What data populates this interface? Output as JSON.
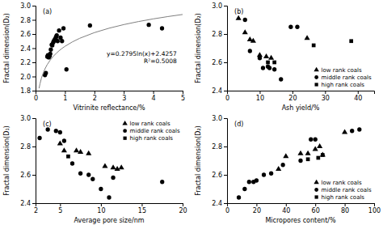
{
  "chart_data": [
    {
      "type": "scatter",
      "title": "(a)",
      "xlabel": "Vitrinite reflectance/%",
      "ylabel": "Fractal dimension(D₂)",
      "xlim": [
        0,
        5
      ],
      "ylim": [
        1.8,
        3.0
      ],
      "xticks": [
        0,
        1,
        2,
        3,
        4,
        5
      ],
      "yticks": [
        1.8,
        {
          "value": 2.0,
          "label": "2.0"
        },
        2.2,
        2.4,
        2.6,
        2.8,
        {
          "value": 3.0,
          "label": "3.0"
        }
      ],
      "annotations": [
        "y=0.2795ln(x)+2.4257",
        "R²=0.5008"
      ],
      "series": [
        {
          "type": "scatter",
          "marker": "circle",
          "color": "black",
          "x": [
            0.32,
            0.35,
            0.4,
            0.42,
            0.45,
            0.48,
            0.5,
            0.52,
            0.55,
            0.57,
            0.6,
            0.62,
            0.65,
            0.68,
            0.7,
            0.72,
            0.75,
            0.8,
            0.85,
            0.9,
            0.95,
            1.05,
            1.85,
            3.85,
            4.3
          ],
          "values": [
            2.02,
            2.05,
            2.28,
            2.3,
            2.27,
            2.29,
            2.32,
            2.38,
            2.45,
            2.44,
            2.48,
            2.5,
            2.52,
            2.54,
            2.56,
            2.58,
            2.5,
            2.65,
            2.55,
            2.5,
            2.68,
            2.1,
            2.72,
            2.73,
            2.68
          ]
        },
        {
          "type": "line",
          "color": "gray",
          "x": [
            0.12,
            0.15,
            0.2,
            0.25,
            0.3,
            0.35,
            0.4,
            0.5,
            0.6,
            0.7,
            0.8,
            0.9,
            1,
            1.25,
            1.5,
            2,
            2.5,
            3,
            3.5,
            4,
            4.5,
            5
          ],
          "values": [
            1.8331,
            1.8955,
            1.9759,
            2.0382,
            2.0892,
            2.1323,
            2.1696,
            2.232,
            2.2829,
            2.326,
            2.3633,
            2.3963,
            2.4257,
            2.4881,
            2.539,
            2.6194,
            2.6818,
            2.7328,
            2.7758,
            2.8132,
            2.8461,
            2.8755
          ]
        }
      ]
    },
    {
      "type": "scatter",
      "title": "(b)",
      "xlabel": "Ash yield/%",
      "ylabel": "Fractal dimension(D₂)",
      "xlim": [
        0,
        45
      ],
      "ylim": [
        2.4,
        3.0
      ],
      "xticks": [
        0,
        10,
        20,
        30,
        40
      ],
      "yticks": [
        2.4,
        2.6,
        2.8,
        {
          "value": 3.0,
          "label": "3.0"
        }
      ],
      "legend": "lower right",
      "series": [
        {
          "name": "low rank coals",
          "marker": "triangle",
          "color": "black",
          "x": [
            3.5,
            5.5,
            7.0,
            8.0,
            10.0,
            12.0,
            13.5,
            24.5
          ],
          "values": [
            2.91,
            2.81,
            2.76,
            2.75,
            2.65,
            2.64,
            2.63,
            2.77
          ]
        },
        {
          "name": "middle rank coals",
          "marker": "circle",
          "color": "black",
          "x": [
            5.5,
            7.0,
            10.0,
            11.0,
            12.5,
            13.0,
            14.5,
            16.5,
            19.5,
            21.5
          ],
          "values": [
            2.9,
            2.68,
            2.63,
            2.56,
            2.57,
            2.56,
            2.55,
            2.48,
            2.85,
            2.85
          ]
        },
        {
          "name": "high rank coals",
          "marker": "square",
          "color": "black",
          "x": [
            12.5,
            14.5,
            26.5,
            38.0
          ],
          "values": [
            2.6,
            2.6,
            2.72,
            2.75
          ]
        }
      ]
    },
    {
      "type": "scatter",
      "title": "(c)",
      "xlabel": "Average pore size/nm",
      "ylabel": "Fractal dimension(D₁)",
      "xlim": [
        2,
        20
      ],
      "ylim": [
        2.4,
        3.0
      ],
      "xticks": [
        2,
        5,
        10,
        15,
        20
      ],
      "yticks": [
        2.4,
        2.6,
        2.8,
        {
          "value": 3.0,
          "label": "3.0"
        }
      ],
      "legend": "upper right",
      "series": [
        {
          "name": "low rank coals",
          "marker": "triangle",
          "color": "black",
          "x": [
            5.0,
            5.5,
            7.0,
            7.5,
            8.5,
            10.5,
            11.5,
            12.0,
            12.5
          ],
          "values": [
            2.82,
            2.77,
            2.77,
            2.76,
            2.75,
            2.66,
            2.65,
            2.64,
            2.65
          ]
        },
        {
          "name": "middle rank coals",
          "marker": "circle",
          "color": "black",
          "x": [
            2.5,
            3.5,
            4.5,
            5.0,
            5.5,
            6.5,
            7.5,
            8.5,
            9.0,
            10.0,
            11.0,
            11.5,
            17.5
          ],
          "values": [
            2.86,
            2.92,
            2.91,
            2.9,
            2.84,
            2.68,
            2.61,
            2.6,
            2.57,
            2.5,
            2.44,
            2.58,
            2.55
          ]
        },
        {
          "name": "high rank coals",
          "marker": "square",
          "color": "black",
          "x": [
            6.0
          ],
          "values": [
            2.73
          ]
        }
      ]
    },
    {
      "type": "scatter",
      "title": "(d)",
      "xlabel": "Micropores content/%",
      "ylabel": "Fractal dimension(D₂)",
      "xlim": [
        0,
        100
      ],
      "ylim": [
        2.4,
        3.0
      ],
      "xticks": [
        0,
        20,
        40,
        60,
        80,
        100
      ],
      "yticks": [
        2.4,
        2.6,
        2.8,
        {
          "value": 3.0,
          "label": "3.0"
        }
      ],
      "legend": "lower right",
      "series": [
        {
          "name": "low rank coals",
          "marker": "triangle",
          "color": "black",
          "x": [
            35,
            40,
            50,
            55,
            60,
            63,
            65,
            80
          ],
          "values": [
            2.64,
            2.73,
            2.75,
            2.75,
            2.78,
            2.8,
            2.74,
            2.9
          ]
        },
        {
          "name": "middle rank coals",
          "marker": "circle",
          "color": "black",
          "x": [
            8,
            12,
            15,
            18,
            20,
            25,
            30,
            38,
            50,
            57,
            60,
            85,
            90
          ],
          "values": [
            2.44,
            2.5,
            2.55,
            2.55,
            2.56,
            2.6,
            2.61,
            2.67,
            2.7,
            2.85,
            2.85,
            2.91,
            2.92
          ]
        },
        {
          "name": "high rank coals",
          "marker": "square",
          "color": "black",
          "x": [
            55,
            62,
            65
          ],
          "values": [
            2.71,
            2.72,
            2.74
          ]
        }
      ]
    }
  ]
}
